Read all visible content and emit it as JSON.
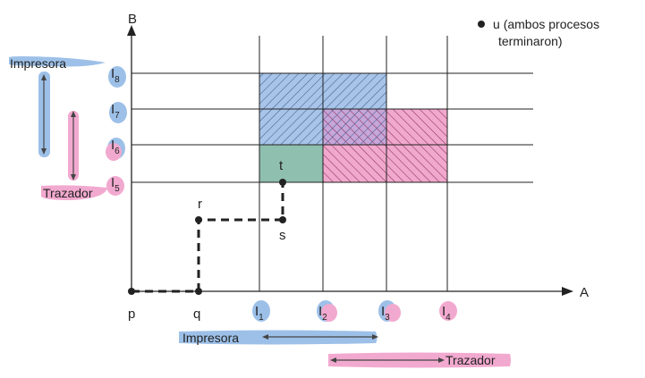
{
  "axes": {
    "y_label": "B",
    "x_label": "A"
  },
  "points": {
    "p": "p",
    "q": "q",
    "r": "r",
    "s": "s",
    "t": "t",
    "u_label": "u",
    "u_note_line1": "(ambos procesos",
    "u_note_line2": "terminaron)"
  },
  "x_instructions": [
    {
      "letter": "I",
      "index": "1",
      "highlight": "blue"
    },
    {
      "letter": "I",
      "index": "2",
      "highlight": "pink"
    },
    {
      "letter": "I",
      "index": "3",
      "highlight": "pink"
    },
    {
      "letter": "I",
      "index": "4",
      "highlight": "pink"
    }
  ],
  "y_instructions": [
    {
      "letter": "I",
      "index": "8",
      "highlight": "blue"
    },
    {
      "letter": "I",
      "index": "7",
      "highlight": "blue"
    },
    {
      "letter": "I",
      "index": "6",
      "highlight": "pink"
    },
    {
      "letter": "I",
      "index": "5",
      "highlight": "pink"
    }
  ],
  "resources": {
    "printer": "Impresora",
    "plotter": "Trazador"
  },
  "colors": {
    "printer_region": "#a8c4e8",
    "plotter_region": "#f0a8cc",
    "overlap_region": "#c7a6d9",
    "safe_region": "#8fbfae",
    "blue_highlight": "#9dc0e8",
    "pink_highlight": "#f2a9cf",
    "grid": "#222222",
    "path": "#222222"
  }
}
